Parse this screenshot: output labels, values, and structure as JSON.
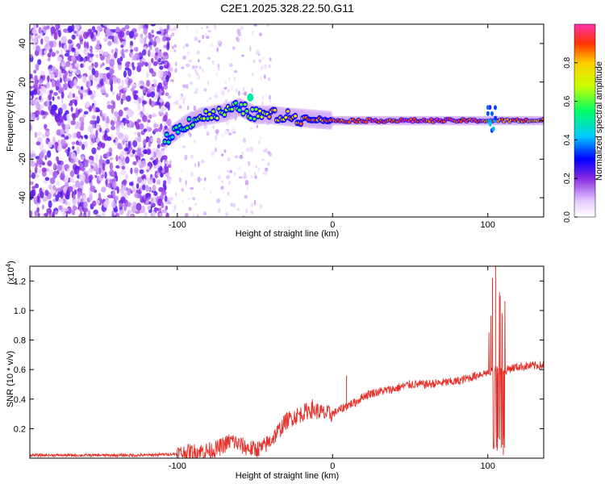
{
  "title": "C2E1.2025.328.22.50.G11",
  "colors": {
    "series": "#e8302a",
    "axis": "#000000"
  },
  "chart_data": [
    {
      "type": "heatmap",
      "title": "C2E1.2025.328.22.50.G11",
      "xlabel": "Height of straight line (km)",
      "ylabel": "Frequency (Hz)",
      "xlim": [
        -195,
        136
      ],
      "ylim": [
        -50,
        50
      ],
      "xticks": [
        -100,
        0,
        100
      ],
      "yticks": [
        -40,
        -20,
        0,
        20,
        40
      ],
      "colorbar": {
        "label": "Normalized spectral amplitude",
        "range": [
          0,
          1
        ],
        "ticks": [
          "0.0",
          "0.2",
          "0.4",
          "0.6",
          "0.8"
        ],
        "tick_values": [
          0,
          0.2,
          0.4,
          0.6,
          0.8
        ]
      },
      "ridge": [
        {
          "x": -105,
          "y": -8,
          "a": 0.55
        },
        {
          "x": -95,
          "y": -2,
          "a": 0.6
        },
        {
          "x": -85,
          "y": 2,
          "a": 0.7
        },
        {
          "x": -70,
          "y": 4,
          "a": 0.7
        },
        {
          "x": -60,
          "y": 7,
          "a": 0.65
        },
        {
          "x": -50,
          "y": 3,
          "a": 0.7
        },
        {
          "x": -40,
          "y": 3,
          "a": 0.85
        },
        {
          "x": -30,
          "y": 2,
          "a": 0.85
        },
        {
          "x": -15,
          "y": 1,
          "a": 0.9
        },
        {
          "x": 0,
          "y": 0,
          "a": 0.95
        },
        {
          "x": 50,
          "y": 0,
          "a": 1.0
        },
        {
          "x": 95,
          "y": 0,
          "a": 1.0
        },
        {
          "x": 105,
          "y": 0,
          "a": 0.9
        },
        {
          "x": 136,
          "y": 0,
          "a": 0.95
        }
      ]
    },
    {
      "type": "line",
      "xlabel": "Height of straight line (km)",
      "ylabel": "SNR (10 * v/v)",
      "multiplier_label": "(x10",
      "multiplier_exp": "4",
      "xlim": [
        -195,
        136
      ],
      "ylim": [
        0,
        1.3
      ],
      "xticks": [
        -100,
        0,
        100
      ],
      "yticks": [
        "0.2",
        "0.4",
        "0.6",
        "0.8",
        "1.0",
        "1.2"
      ],
      "ytick_values": [
        0.2,
        0.4,
        0.6,
        0.8,
        1.0,
        1.2
      ],
      "series": [
        {
          "name": "SNR",
          "x": [
            -195,
            -150,
            -120,
            -100,
            -80,
            -75,
            -70,
            -65,
            -60,
            -55,
            -50,
            -45,
            -40,
            -35,
            -30,
            -25,
            -20,
            -15,
            -10,
            -5,
            0,
            5,
            10,
            15,
            20,
            25,
            30,
            40,
            50,
            60,
            70,
            80,
            90,
            95,
            100,
            105,
            110,
            115,
            120,
            136
          ],
          "y": [
            0.02,
            0.02,
            0.02,
            0.03,
            0.05,
            0.06,
            0.09,
            0.12,
            0.09,
            0.07,
            0.06,
            0.07,
            0.12,
            0.18,
            0.25,
            0.28,
            0.3,
            0.33,
            0.32,
            0.3,
            0.3,
            0.33,
            0.36,
            0.38,
            0.42,
            0.44,
            0.45,
            0.47,
            0.5,
            0.5,
            0.51,
            0.52,
            0.55,
            0.57,
            0.58,
            0.6,
            0.59,
            0.61,
            0.62,
            0.63
          ]
        }
      ],
      "spikes": [
        {
          "x": 103,
          "y": 1.22
        },
        {
          "x": 105,
          "y": 1.3
        },
        {
          "x": 106,
          "y": 0.05
        },
        {
          "x": 108,
          "y": 1.1
        },
        {
          "x": 110,
          "y": 0.02
        },
        {
          "x": 9,
          "y": 0.56
        },
        {
          "x": -13,
          "y": 0.4
        }
      ]
    }
  ]
}
